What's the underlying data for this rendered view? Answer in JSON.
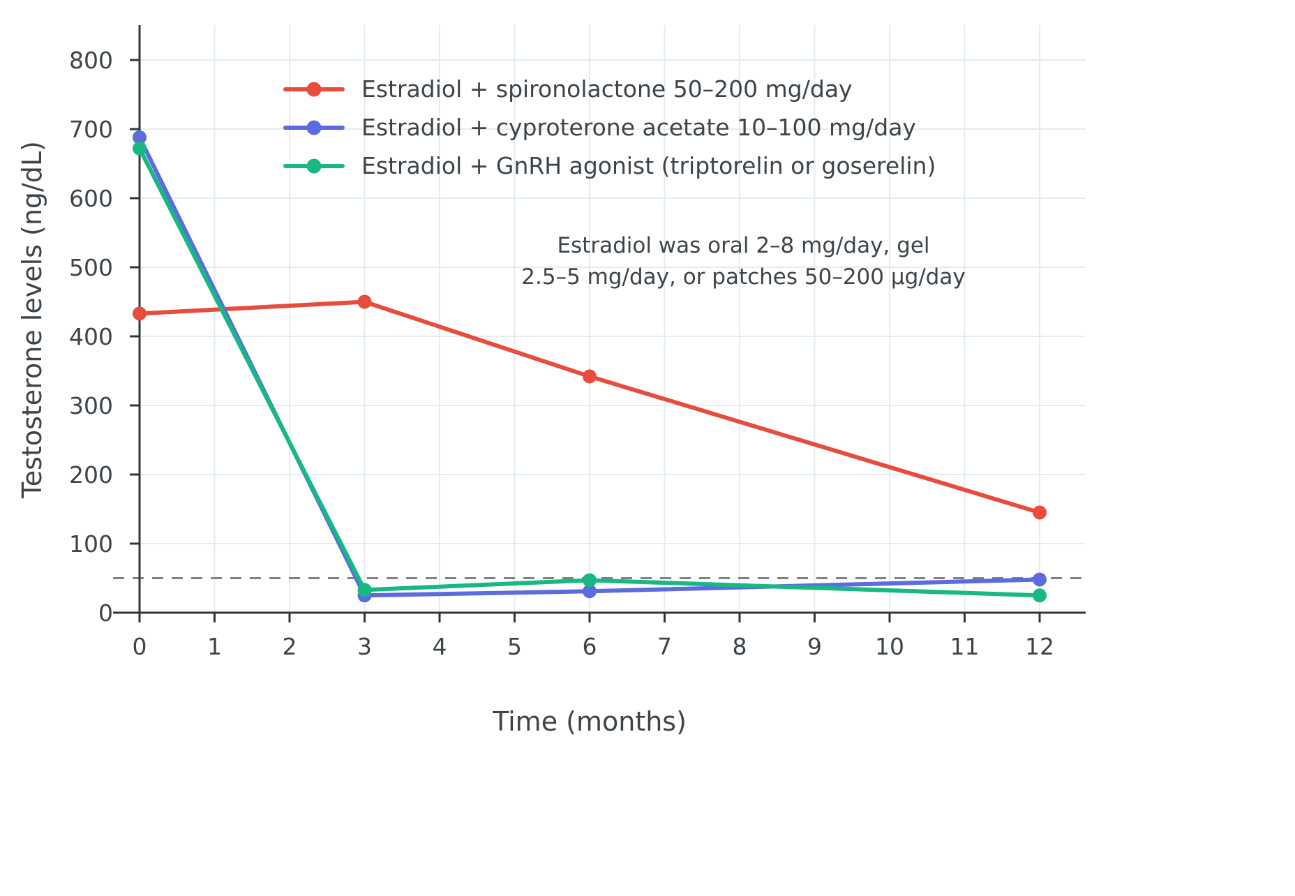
{
  "chart_data": {
    "type": "line",
    "title": "",
    "xlabel": "Time (months)",
    "ylabel": "Testosterone levels (ng/dL)",
    "x": [
      0,
      3,
      6,
      12
    ],
    "x_ticks": [
      0,
      1,
      2,
      3,
      4,
      5,
      6,
      7,
      8,
      9,
      10,
      11,
      12
    ],
    "y_ticks": [
      0,
      100,
      200,
      300,
      400,
      500,
      600,
      700,
      800
    ],
    "xlim": [
      0,
      12.6
    ],
    "ylim": [
      0,
      860
    ],
    "grid": true,
    "legend_position": "top-left-inside",
    "series": [
      {
        "name": "Estradiol + spironolactone 50–200 mg/day",
        "color": "#e74c3c",
        "values": [
          433,
          450,
          342,
          145
        ]
      },
      {
        "name": "Estradiol + cyproterone acetate 10–100 mg/day",
        "color": "#5b6be0",
        "values": [
          688,
          25,
          31,
          48
        ]
      },
      {
        "name": "Estradiol + GnRH agonist (triptorelin or goserelin)",
        "color": "#18b884",
        "values": [
          672,
          33,
          47,
          25
        ]
      }
    ],
    "reference_line": {
      "value": 50,
      "style": "dashed",
      "color": "#7f8387"
    },
    "annotation": {
      "line1": "Estradiol was oral 2–8 mg/day, gel",
      "line2": "2.5–5 mg/day, or patches 50–200 µg/day"
    },
    "colors": {
      "axis": "#30353a",
      "gridline": "#e3ecf3",
      "text": "#3d4449"
    }
  }
}
